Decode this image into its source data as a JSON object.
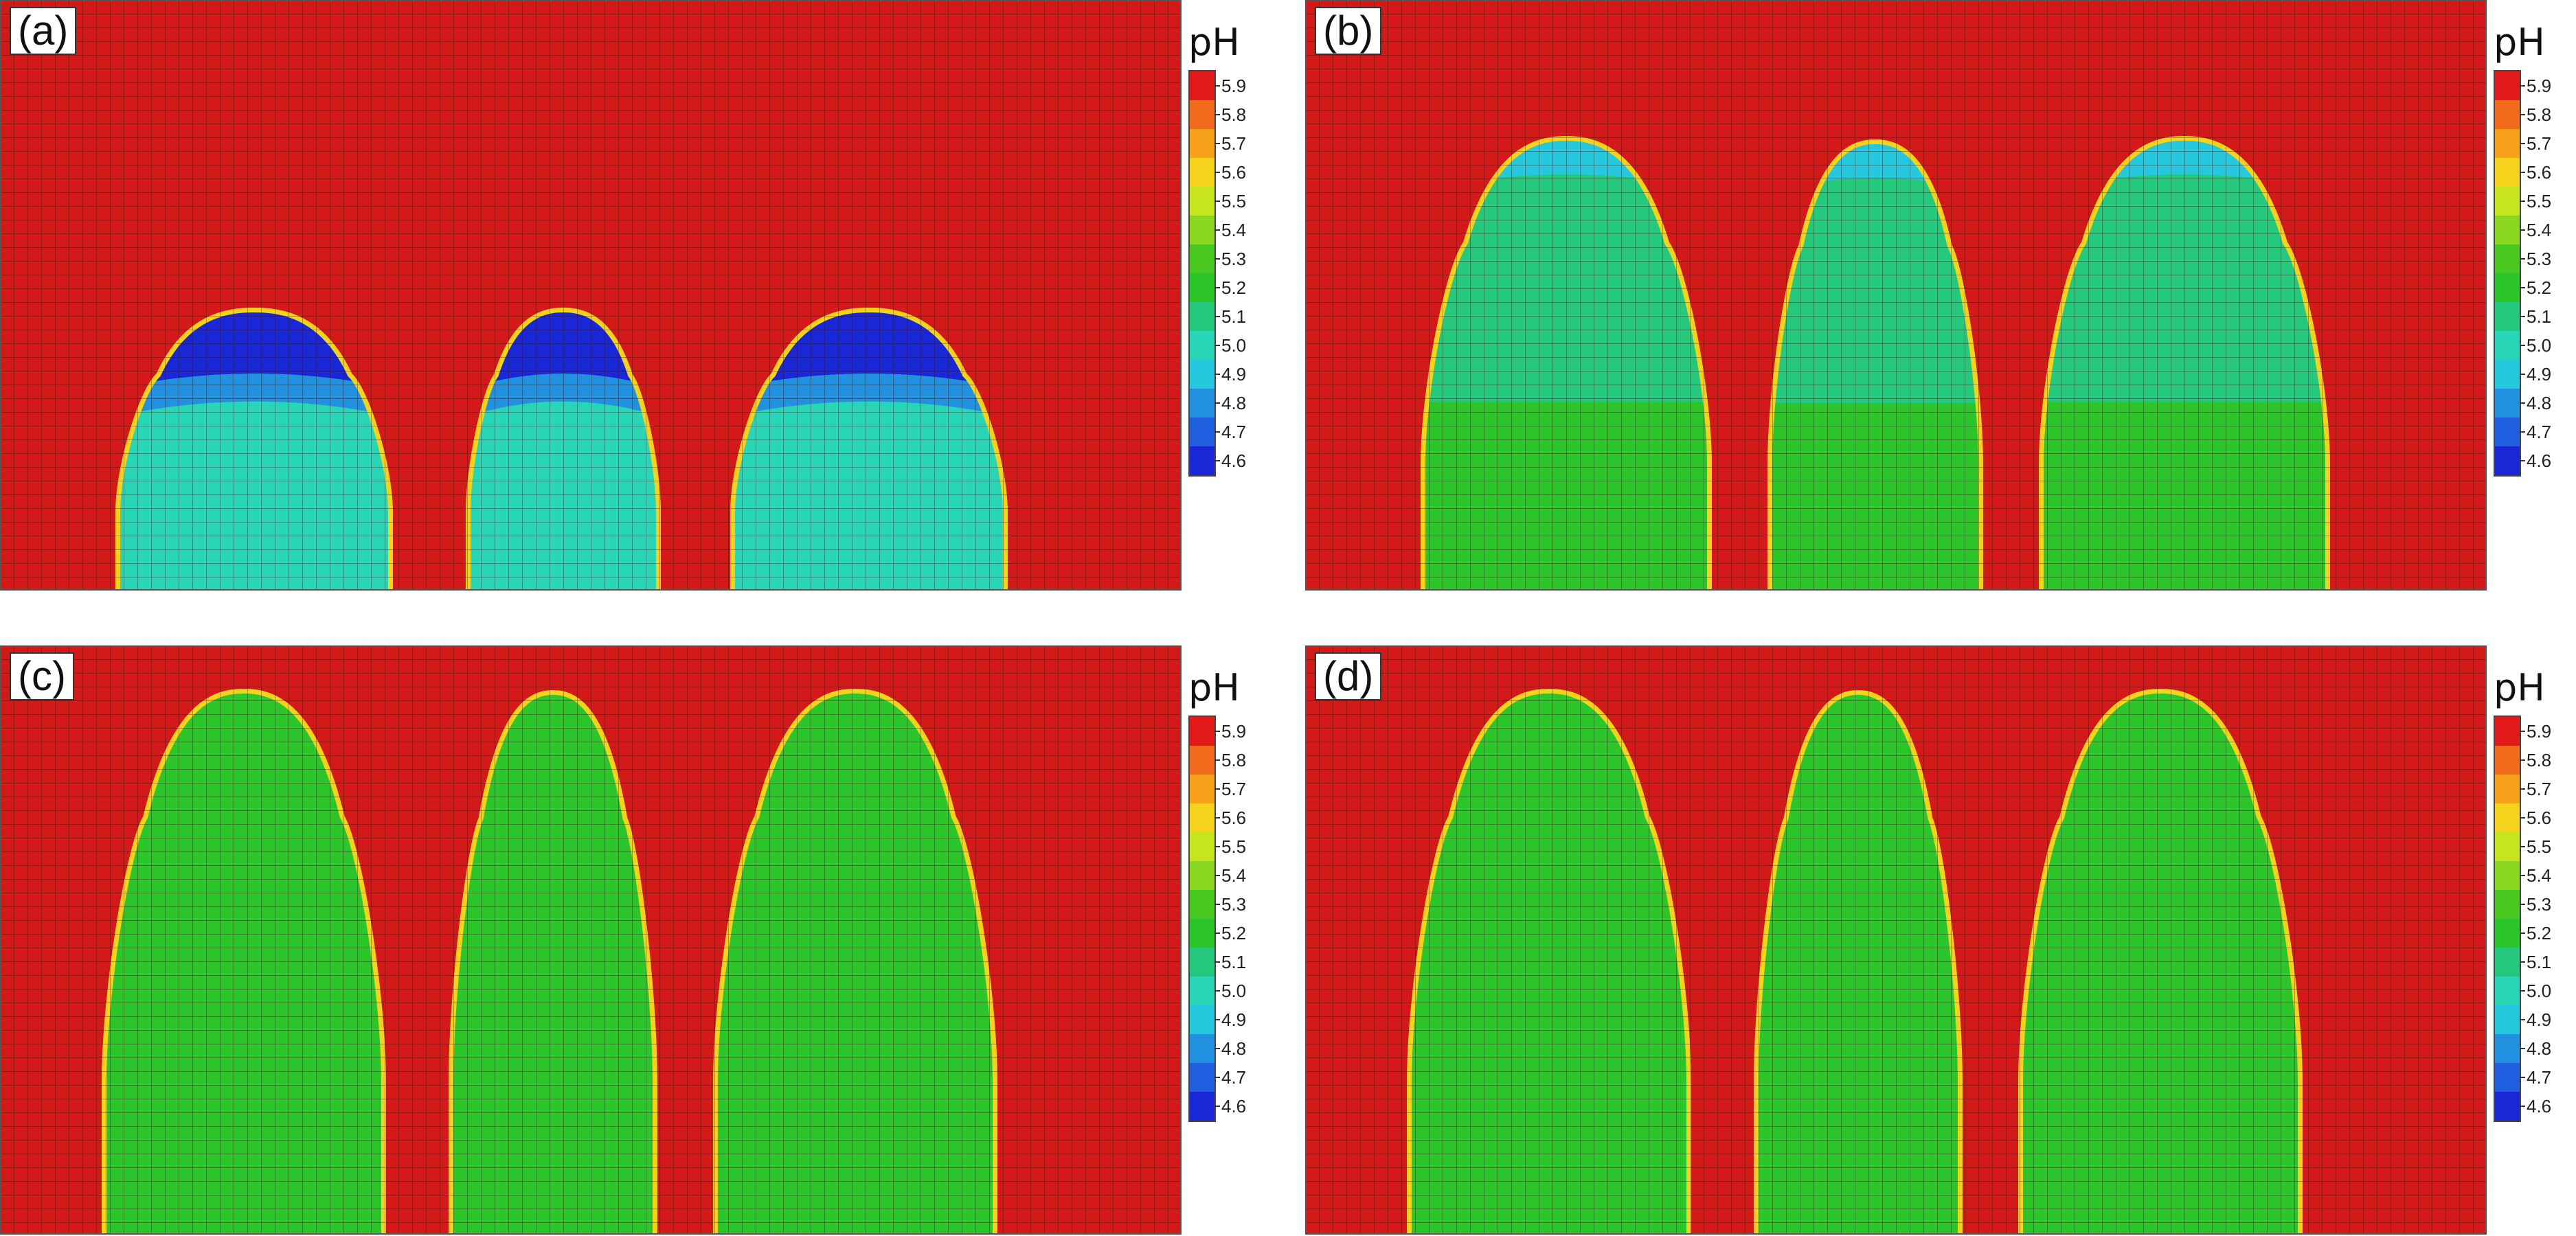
{
  "legend": {
    "title": "pH",
    "ticks": [
      "5.9",
      "5.8",
      "5.7",
      "5.6",
      "5.5",
      "5.4",
      "5.3",
      "5.2",
      "5.1",
      "5.0",
      "4.9",
      "4.8",
      "4.7",
      "4.6"
    ],
    "colors": [
      "#e31a1c",
      "#f26a1b",
      "#f7a11a",
      "#f5d31c",
      "#c7e51e",
      "#8bd61e",
      "#49c81f",
      "#2cc62a",
      "#24c97c",
      "#28d6b7",
      "#25c8dc",
      "#2191e0",
      "#1f5fe0",
      "#1927d6"
    ]
  },
  "colors": {
    "background": "#d41919",
    "grid": "#2b0606"
  },
  "panels": [
    {
      "label": "(a)",
      "stage": "early",
      "blobs": [
        {
          "top_color": "#1927d6",
          "body_color": "#28d6b7"
        },
        {
          "top_color": "#1927d6",
          "body_color": "#28d6b7"
        },
        {
          "top_color": "#1927d6",
          "body_color": "#28d6b7"
        }
      ]
    },
    {
      "label": "(b)",
      "stage": "mid",
      "blobs": [
        {
          "top_color": "#25c8dc",
          "body_color": "#24c97c",
          "base_color": "#2cc62a"
        },
        {
          "top_color": "#25c8dc",
          "body_color": "#24c97c",
          "base_color": "#2cc62a"
        },
        {
          "top_color": "#25c8dc",
          "body_color": "#24c97c",
          "base_color": "#2cc62a"
        }
      ]
    },
    {
      "label": "(c)",
      "stage": "late",
      "blobs": [
        {
          "body_color": "#2cc62a"
        },
        {
          "body_color": "#2cc62a"
        },
        {
          "body_color": "#2cc62a"
        }
      ]
    },
    {
      "label": "(d)",
      "stage": "late",
      "blobs": [
        {
          "body_color": "#2cc62a"
        },
        {
          "body_color": "#2cc62a"
        },
        {
          "body_color": "#2cc62a"
        }
      ]
    }
  ]
}
